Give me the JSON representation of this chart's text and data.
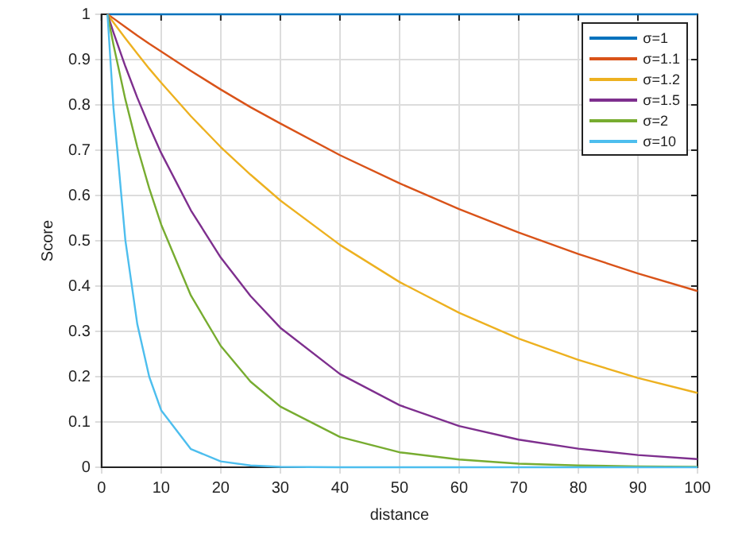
{
  "chart_data": {
    "type": "line",
    "xlabel": "distance",
    "ylabel": "Score",
    "x": [
      1,
      2,
      4,
      6,
      8,
      10,
      15,
      20,
      25,
      30,
      40,
      50,
      60,
      70,
      80,
      90,
      100
    ],
    "series": [
      {
        "name": "σ=1",
        "color": "#0072bd",
        "values": [
          1,
          1,
          1,
          1,
          1,
          1,
          1,
          1,
          1,
          1,
          1,
          1,
          1,
          1,
          1,
          1,
          1
        ]
      },
      {
        "name": "σ=1.1",
        "color": "#d95319",
        "values": [
          1,
          0.991,
          0.972,
          0.953,
          0.935,
          0.918,
          0.875,
          0.834,
          0.795,
          0.759,
          0.689,
          0.627,
          0.57,
          0.518,
          0.471,
          0.428,
          0.389
        ]
      },
      {
        "name": "σ=1.2",
        "color": "#edb120",
        "values": [
          1,
          0.982,
          0.947,
          0.913,
          0.88,
          0.849,
          0.775,
          0.707,
          0.646,
          0.589,
          0.491,
          0.409,
          0.341,
          0.284,
          0.237,
          0.197,
          0.164
        ]
      },
      {
        "name": "σ=1.5",
        "color": "#7e2f8e",
        "values": [
          1,
          0.96,
          0.885,
          0.816,
          0.753,
          0.694,
          0.567,
          0.463,
          0.378,
          0.308,
          0.206,
          0.137,
          0.091,
          0.061,
          0.041,
          0.027,
          0.018
        ]
      },
      {
        "name": "σ=2",
        "color": "#77ac30",
        "values": [
          1,
          0.933,
          0.812,
          0.707,
          0.616,
          0.536,
          0.379,
          0.268,
          0.189,
          0.134,
          0.067,
          0.033,
          0.017,
          0.008,
          0.004,
          0.002,
          0.001
        ]
      },
      {
        "name": "σ=10",
        "color": "#4dbeee",
        "values": [
          1,
          0.794,
          0.501,
          0.316,
          0.2,
          0.126,
          0.04,
          0.013,
          0.004,
          0.001,
          0,
          0,
          0,
          0,
          0,
          0,
          0
        ]
      }
    ],
    "xlim": [
      0,
      100
    ],
    "xticks": [
      0,
      10,
      20,
      30,
      40,
      50,
      60,
      70,
      80,
      90,
      100
    ],
    "ylim": [
      0,
      1
    ],
    "yticks": [
      0,
      0.1,
      0.2,
      0.3,
      0.4,
      0.5,
      0.6,
      0.7,
      0.8,
      0.9,
      1
    ],
    "grid": true,
    "legend": "top right",
    "marker": "none",
    "line_style": "solid"
  }
}
